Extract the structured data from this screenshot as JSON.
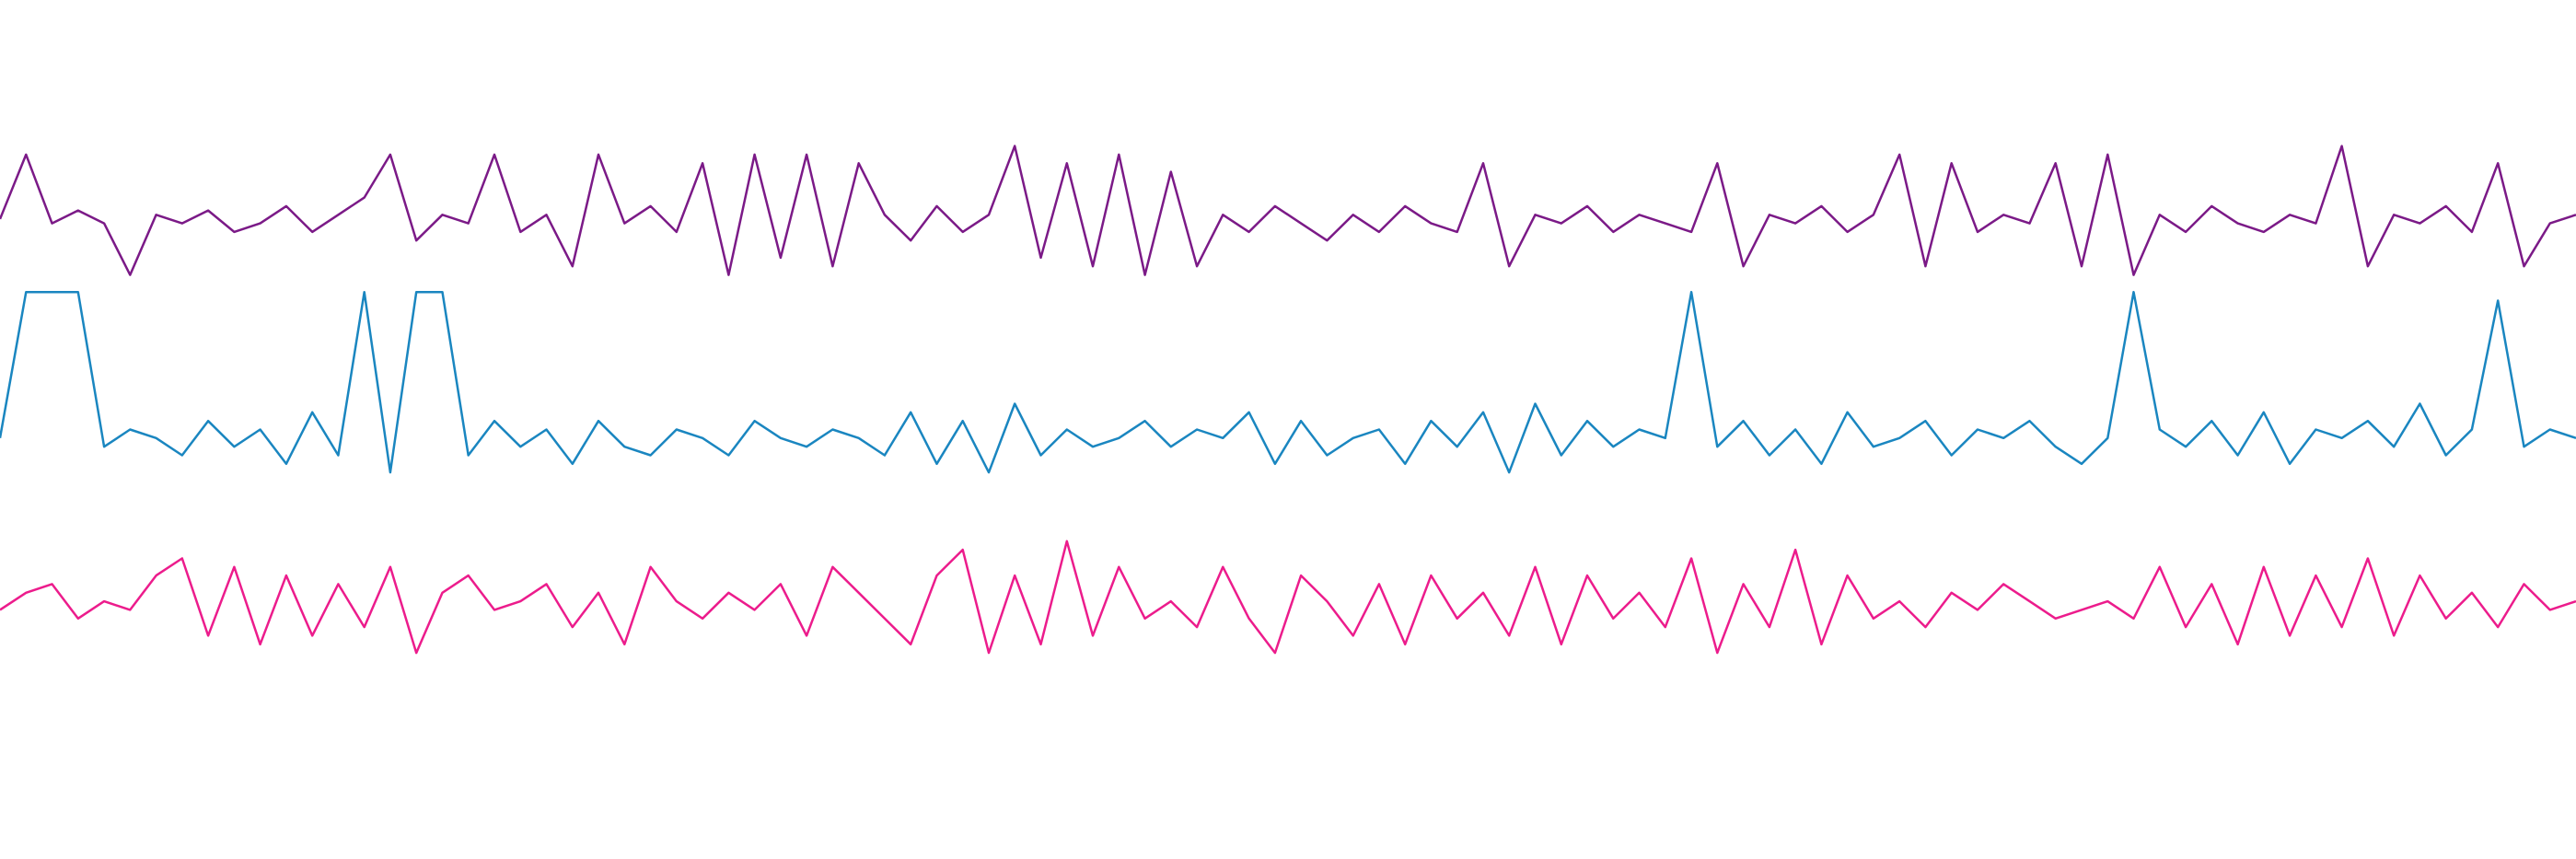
{
  "chart_data": {
    "type": "line",
    "x": [
      0,
      1,
      2,
      3,
      4,
      5,
      6,
      7,
      8,
      9,
      10,
      11,
      12,
      13,
      14,
      15,
      16,
      17,
      18,
      19,
      20,
      21,
      22,
      23,
      24,
      25,
      26,
      27,
      28,
      29,
      30,
      31,
      32,
      33,
      34,
      35,
      36,
      37,
      38,
      39,
      40,
      41,
      42,
      43,
      44,
      45,
      46,
      47,
      48,
      49,
      50,
      51,
      52,
      53,
      54,
      55,
      56,
      57,
      58,
      59,
      60,
      61,
      62,
      63,
      64,
      65,
      66,
      67,
      68,
      69,
      70,
      71,
      72,
      73,
      74,
      75,
      76,
      77,
      78,
      79,
      80,
      81,
      82,
      83,
      84,
      85,
      86,
      87,
      88,
      89,
      90,
      91,
      92,
      93,
      94,
      95,
      96,
      97,
      98,
      99
    ],
    "xlim": [
      0,
      99
    ],
    "ylim": [
      0,
      100
    ],
    "series": [
      {
        "color": "#7b1a87",
        "values": [
          74.5,
          82,
          74,
          75.5,
          74,
          68,
          75,
          74,
          75.5,
          73,
          74,
          76,
          73,
          75,
          77,
          82,
          72,
          75,
          74,
          82,
          73,
          75,
          69,
          82,
          74,
          76,
          73,
          81,
          68,
          82,
          70,
          82,
          69,
          81,
          75,
          72,
          76,
          73,
          75,
          83,
          70,
          81,
          69,
          82,
          68,
          80,
          69,
          75,
          73,
          76,
          74,
          72,
          75,
          73,
          76,
          74,
          73,
          81,
          69,
          75,
          74,
          76,
          73,
          75,
          74,
          73,
          81,
          69,
          75,
          74,
          76,
          73,
          75,
          82,
          69,
          81,
          73,
          75,
          74,
          81,
          69,
          82,
          68,
          75,
          73,
          76,
          74,
          73,
          75,
          74,
          83,
          69,
          75,
          74,
          76,
          73,
          81,
          69,
          74,
          75
        ]
      },
      {
        "color": "#1a86c0",
        "values": [
          49,
          66,
          66,
          66,
          48,
          50,
          49,
          47,
          51,
          48,
          50,
          46,
          52,
          47,
          66,
          45,
          66,
          66,
          47,
          51,
          48,
          50,
          46,
          51,
          48,
          47,
          50,
          49,
          47,
          51,
          49,
          48,
          50,
          49,
          47,
          52,
          46,
          51,
          45,
          53,
          47,
          50,
          48,
          49,
          51,
          48,
          50,
          49,
          52,
          46,
          51,
          47,
          49,
          50,
          46,
          51,
          48,
          52,
          45,
          53,
          47,
          51,
          48,
          50,
          49,
          66,
          48,
          51,
          47,
          50,
          46,
          52,
          48,
          49,
          51,
          47,
          50,
          49,
          51,
          48,
          46,
          49,
          66,
          50,
          48,
          51,
          47,
          52,
          46,
          50,
          49,
          51,
          48,
          53,
          47,
          50,
          65,
          48,
          50,
          49
        ]
      },
      {
        "color": "#ec1c8c",
        "values": [
          29,
          31,
          32,
          28,
          30,
          29,
          33,
          35,
          26,
          34,
          25,
          33,
          26,
          32,
          27,
          34,
          24,
          31,
          33,
          29,
          30,
          32,
          27,
          31,
          25,
          34,
          30,
          28,
          31,
          29,
          32,
          26,
          34,
          31,
          28,
          25,
          33,
          36,
          24,
          33,
          25,
          37,
          26,
          34,
          28,
          30,
          27,
          34,
          28,
          24,
          33,
          30,
          26,
          32,
          25,
          33,
          28,
          31,
          26,
          34,
          25,
          33,
          28,
          31,
          27,
          35,
          24,
          32,
          27,
          36,
          25,
          33,
          28,
          30,
          27,
          31,
          29,
          32,
          30,
          28,
          29,
          30,
          28,
          34,
          27,
          32,
          25,
          34,
          26,
          33,
          27,
          35,
          26,
          33,
          28,
          31,
          27,
          32,
          29,
          30
        ]
      }
    ]
  }
}
